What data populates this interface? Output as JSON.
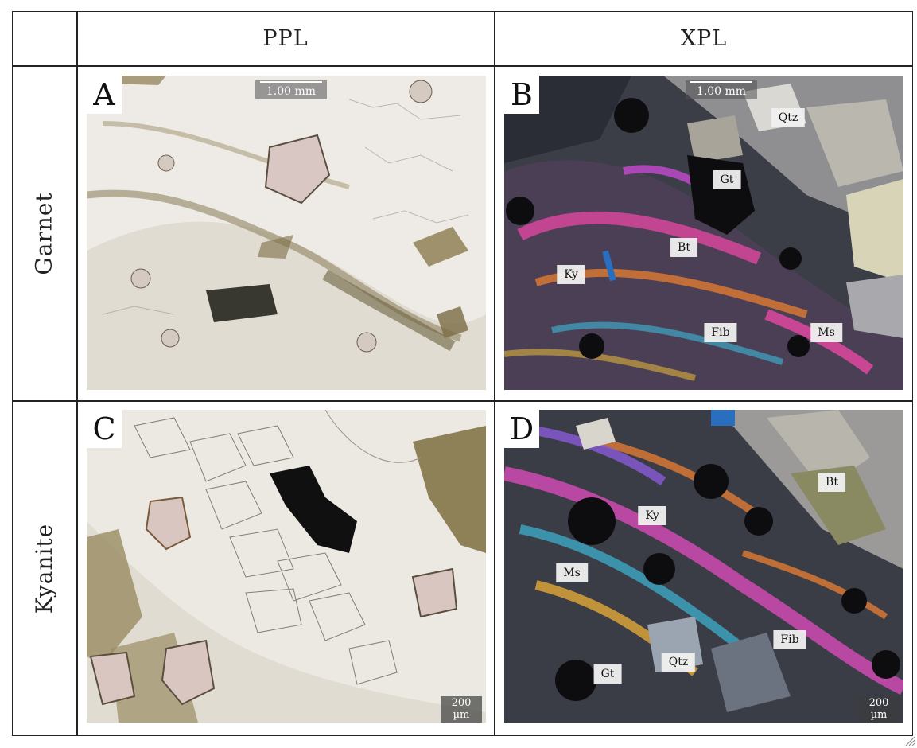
{
  "columns": {
    "ppl": "PPL",
    "xpl": "XPL"
  },
  "rows": {
    "garnet": "Garnet",
    "kyanite": "Kyanite"
  },
  "panels": {
    "a": {
      "letter": "A",
      "scale": "1.00 mm"
    },
    "b": {
      "letter": "B",
      "scale": "1.00 mm",
      "labels": {
        "qtz": "Qtz",
        "gt": "Gt",
        "bt": "Bt",
        "ky": "Ky",
        "fib": "Fib",
        "ms": "Ms"
      }
    },
    "c": {
      "letter": "C",
      "scale": "200 µm"
    },
    "d": {
      "letter": "D",
      "scale": "200 µm",
      "labels": {
        "bt": "Bt",
        "ky": "Ky",
        "ms": "Ms",
        "fib": "Fib",
        "gt": "Gt",
        "qtz": "Qtz"
      }
    }
  }
}
